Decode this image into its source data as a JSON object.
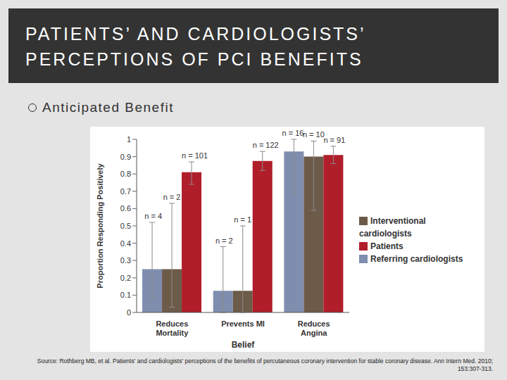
{
  "chart_data": {
    "type": "bar",
    "title": "PATIENTS’ AND CARDIOLOGISTS’ PERCEPTIONS OF PCI BENEFITS",
    "subtitle": "Anticipated Benefit",
    "note": "Source: Rothberg MB, et al. Patients' and cardiologists' perceptions of the benefits of percutaneous coronary intervention for stable coronary disease. Ann Intern Med. 2010; 153:307-313.",
    "x_label": "Belief",
    "y_label": "Proportion Responding Positively",
    "categories": [
      "Reduces Mortality",
      "Prevents MI",
      "Reduces Angina"
    ],
    "series": [
      {
        "name": "Referring cardiologists",
        "color": "#7f8eae",
        "values": [
          0.25,
          0.125,
          0.93
        ],
        "ci_low": [
          0.08,
          0.0,
          0.68
        ],
        "ci_high": [
          0.52,
          0.38,
          1.0
        ],
        "n_labels": [
          "n = 4",
          "n = 2",
          "n = 16"
        ]
      },
      {
        "name": "Interventional cardiologists",
        "color": "#6d5b49",
        "values": [
          0.25,
          0.125,
          0.9
        ],
        "ci_low": [
          0.03,
          0.0,
          0.59
        ],
        "ci_high": [
          0.63,
          0.5,
          0.99
        ],
        "n_labels": [
          "n = 2",
          "n = 1",
          "n = 10"
        ]
      },
      {
        "name": "Patients",
        "color": "#b01e2a",
        "values": [
          0.81,
          0.875,
          0.91
        ],
        "ci_low": [
          0.74,
          0.82,
          0.86
        ],
        "ci_high": [
          0.87,
          0.93,
          0.96
        ],
        "n_labels": [
          "n = 101",
          "n = 122",
          "n = 91"
        ]
      }
    ],
    "ylim": [
      0,
      1
    ],
    "yticks": [
      0,
      0.1,
      0.2,
      0.3,
      0.4,
      0.5,
      0.6,
      0.7,
      0.8,
      0.9,
      1
    ],
    "grid": false,
    "legend": "right"
  }
}
